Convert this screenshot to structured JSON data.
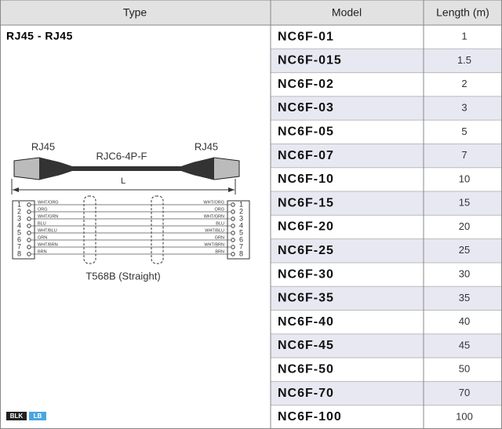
{
  "table": {
    "header": [
      "Type",
      "Model",
      "Length (m)"
    ],
    "type_title": "RJ45 - RJ45",
    "rows": [
      [
        "NC6F-01",
        1
      ],
      [
        "NC6F-015",
        1.5
      ],
      [
        "NC6F-02",
        2
      ],
      [
        "NC6F-03",
        3
      ],
      [
        "NC6F-05",
        5
      ],
      [
        "NC6F-07",
        7
      ],
      [
        "NC6F-10",
        10
      ],
      [
        "NC6F-15",
        15
      ],
      [
        "NC6F-20",
        20
      ],
      [
        "NC6F-25",
        25
      ],
      [
        "NC6F-30",
        30
      ],
      [
        "NC6F-35",
        35
      ],
      [
        "NC6F-40",
        40
      ],
      [
        "NC6F-45",
        45
      ],
      [
        "NC6F-50",
        50
      ],
      [
        "NC6F-70",
        70
      ],
      [
        "NC6F-100",
        100
      ]
    ]
  },
  "diagram": {
    "connector_left": "RJ45",
    "cable": "RJC6-4P-F",
    "connector_right": "RJ45",
    "length_label": "L",
    "pins": [
      1,
      2,
      3,
      4,
      5,
      6,
      7,
      8
    ],
    "wires": [
      "WHT/ORG",
      "ORG",
      "WHT/GRN",
      "BLU",
      "WHT/BLU",
      "GRN",
      "WHT/BRN",
      "BRN"
    ],
    "caption": "T568B (Straight)"
  },
  "badges": [
    "BLK",
    "LB"
  ]
}
